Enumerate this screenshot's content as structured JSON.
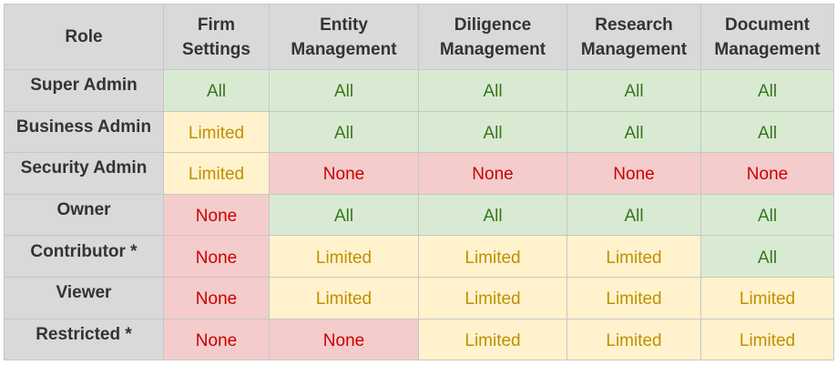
{
  "table": {
    "headers": [
      [
        "Role"
      ],
      [
        "Firm",
        "Settings"
      ],
      [
        "Entity",
        "Management"
      ],
      [
        "Diligence",
        "Management"
      ],
      [
        "Research",
        "Management"
      ],
      [
        "Document",
        "Management"
      ]
    ],
    "rows": [
      {
        "role": "Super Admin",
        "cells": [
          "All",
          "All",
          "All",
          "All",
          "All"
        ]
      },
      {
        "role": "Business Admin",
        "cells": [
          "Limited",
          "All",
          "All",
          "All",
          "All"
        ]
      },
      {
        "role": "Security Admin",
        "cells": [
          "Limited",
          "None",
          "None",
          "None",
          "None"
        ]
      },
      {
        "role": "Owner",
        "cells": [
          "None",
          "All",
          "All",
          "All",
          "All"
        ]
      },
      {
        "role": "Contributor *",
        "cells": [
          "None",
          "Limited",
          "Limited",
          "Limited",
          "All"
        ]
      },
      {
        "role": "Viewer",
        "cells": [
          "None",
          "Limited",
          "Limited",
          "Limited",
          "Limited"
        ]
      },
      {
        "role": "Restricted *",
        "cells": [
          "None",
          "None",
          "Limited",
          "Limited",
          "Limited"
        ]
      }
    ]
  },
  "colors": {
    "header_bg": "#d9d9d9",
    "border": "#c6c6c6",
    "All": {
      "bg": "#d9ead3",
      "fg": "#38761d"
    },
    "Limited": {
      "bg": "#fff2cc",
      "fg": "#bf9000"
    },
    "None": {
      "bg": "#f4cccc",
      "fg": "#cc0000"
    }
  }
}
